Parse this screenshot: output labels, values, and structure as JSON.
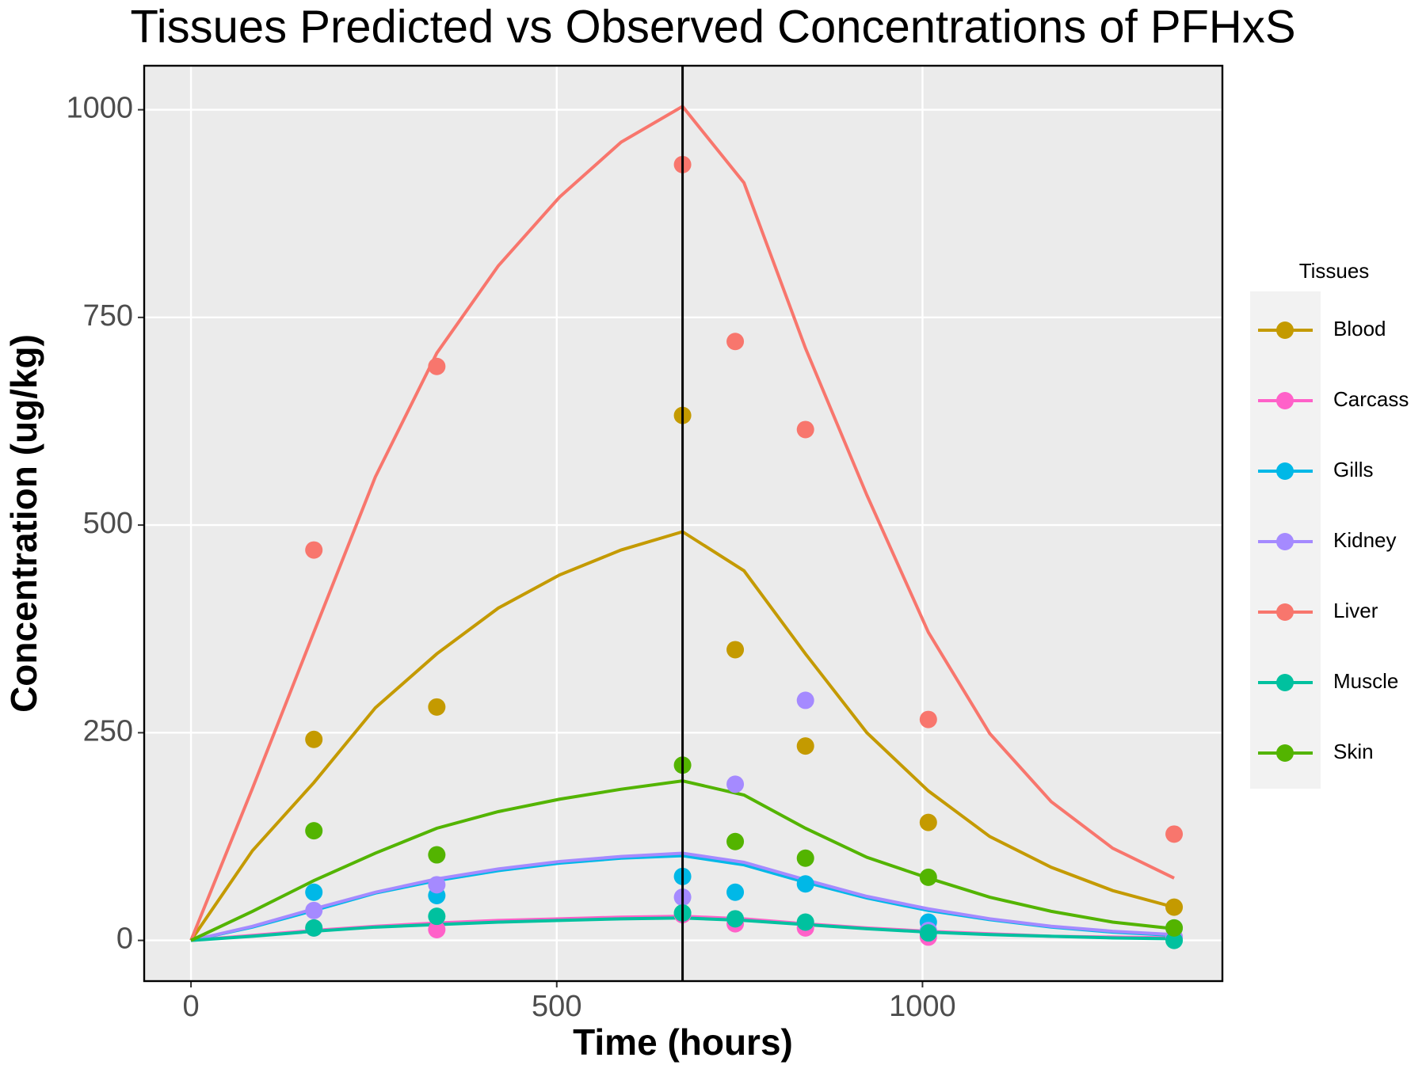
{
  "chart_data": {
    "type": "line",
    "title": "Tissues Predicted vs Observed Concentrations of PFHxS",
    "x_label": "Time (hours)",
    "y_label": "Concentration (ug/kg)",
    "legend_title": "Tissues",
    "legend_position": "right",
    "grid": true,
    "xlim": [
      -64,
      1410
    ],
    "ylim": [
      -49,
      1053
    ],
    "xticks": [
      0,
      500,
      1000
    ],
    "yticks": [
      0,
      250,
      500,
      750,
      1000
    ],
    "vline": 672,
    "x": [
      0,
      84,
      168,
      252,
      336,
      420,
      504,
      588,
      672,
      756,
      840,
      924,
      1008,
      1092,
      1176,
      1260,
      1344
    ],
    "observed_x": [
      168,
      336,
      672,
      744,
      840,
      1008,
      1344
    ],
    "series": [
      {
        "name": "Blood",
        "color": "#C49A00",
        "values": [
          0,
          108,
          190,
          280,
          345,
          400,
          440,
          470,
          492,
          445,
          345,
          250,
          180,
          125,
          88,
          60,
          40
        ],
        "observed": [
          242,
          281,
          632,
          350,
          234,
          142,
          40
        ]
      },
      {
        "name": "Carcass",
        "color": "#FF61C9",
        "values": [
          0,
          6,
          12,
          17,
          21,
          24,
          26,
          28,
          29,
          26,
          20,
          15,
          11,
          8,
          5,
          4,
          3
        ],
        "observed": [
          15,
          13,
          31,
          20,
          15,
          4,
          4
        ]
      },
      {
        "name": "Gills",
        "color": "#00B8E7",
        "values": [
          0,
          16,
          36,
          57,
          72,
          84,
          93,
          99,
          102,
          91,
          70,
          51,
          36,
          25,
          16,
          10,
          6
        ],
        "observed": [
          58,
          54,
          77,
          58,
          68,
          22,
          15
        ]
      },
      {
        "name": "Kidney",
        "color": "#A58AFF",
        "values": [
          0,
          17,
          38,
          58,
          74,
          86,
          95,
          101,
          105,
          94,
          73,
          53,
          38,
          26,
          17,
          11,
          7
        ],
        "observed": [
          36,
          67,
          52,
          188,
          289,
          12,
          4
        ]
      },
      {
        "name": "Liver",
        "color": "#F8766D",
        "values": [
          0,
          183,
          371,
          558,
          707,
          812,
          895,
          961,
          1004,
          912,
          713,
          536,
          371,
          249,
          167,
          111,
          75
        ],
        "observed": [
          470,
          691,
          934,
          721,
          615,
          266,
          128
        ]
      },
      {
        "name": "Muscle",
        "color": "#00C19F",
        "values": [
          0,
          5,
          11,
          16,
          19,
          22,
          24,
          26,
          27,
          24,
          19,
          14,
          10,
          7,
          5,
          3,
          2
        ],
        "observed": [
          15,
          29,
          33,
          26,
          22,
          9,
          0
        ]
      },
      {
        "name": "Skin",
        "color": "#53B400",
        "values": [
          0,
          35,
          72,
          105,
          135,
          155,
          170,
          182,
          192,
          175,
          135,
          100,
          75,
          52,
          35,
          22,
          14
        ],
        "observed": [
          132,
          103,
          211,
          119,
          99,
          76,
          15
        ]
      }
    ]
  }
}
